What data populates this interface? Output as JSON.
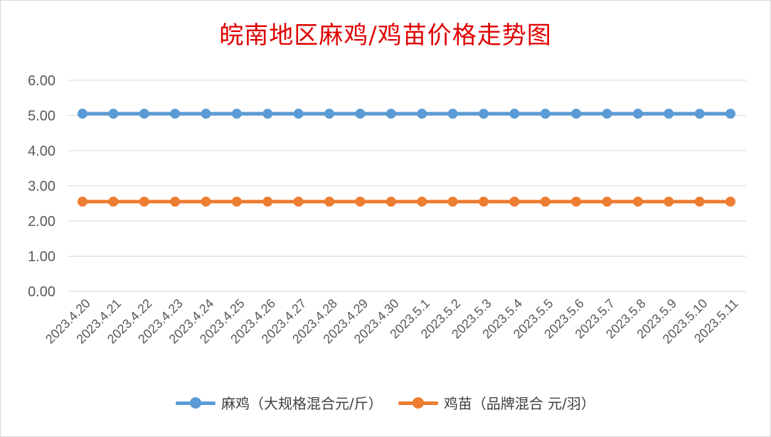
{
  "chart_data": {
    "type": "line",
    "title": "皖南地区麻鸡/鸡苗价格走势图",
    "xlabel": "",
    "ylabel": "",
    "categories": [
      "2023.4.20",
      "2023.4.21",
      "2023.4.22",
      "2023.4.23",
      "2023.4.24",
      "2023.4.25",
      "2023.4.26",
      "2023.4.27",
      "2023.4.28",
      "2023.4.29",
      "2023.4.30",
      "2023.5.1",
      "2023.5.2",
      "2023.5.3",
      "2023.5.4",
      "2023.5.5",
      "2023.5.6",
      "2023.5.7",
      "2023.5.8",
      "2023.5.9",
      "2023.5.10",
      "2023.5.11"
    ],
    "ylim": [
      0,
      6
    ],
    "yticks": [
      "0.00",
      "1.00",
      "2.00",
      "3.00",
      "4.00",
      "5.00",
      "6.00"
    ],
    "grid": true,
    "legend_position": "bottom",
    "series": [
      {
        "name": "麻鸡（大规格混合元/斤）",
        "color": "#5b9bd5",
        "values": [
          5.05,
          5.05,
          5.05,
          5.05,
          5.05,
          5.05,
          5.05,
          5.05,
          5.05,
          5.05,
          5.05,
          5.05,
          5.05,
          5.05,
          5.05,
          5.05,
          5.05,
          5.05,
          5.05,
          5.05,
          5.05,
          5.05
        ]
      },
      {
        "name": "鸡苗（品牌混合 元/羽）",
        "color": "#ed7d31",
        "values": [
          2.55,
          2.55,
          2.55,
          2.55,
          2.55,
          2.55,
          2.55,
          2.55,
          2.55,
          2.55,
          2.55,
          2.55,
          2.55,
          2.55,
          2.55,
          2.55,
          2.55,
          2.55,
          2.55,
          2.55,
          2.55,
          2.55
        ]
      }
    ]
  }
}
